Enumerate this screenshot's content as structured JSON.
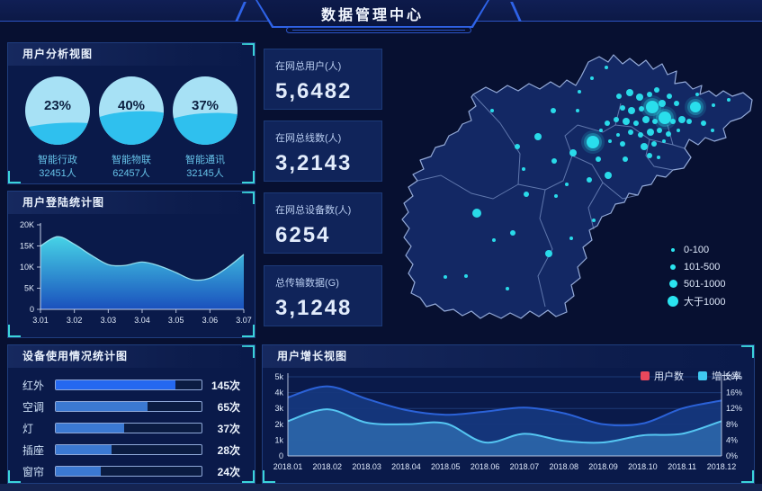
{
  "header": {
    "title": "数据管理中心"
  },
  "panels": {
    "user_analysis": {
      "title": "用户分析视图"
    },
    "login": {
      "title": "用户登陆统计图"
    },
    "device": {
      "title": "设备使用情况统计图"
    },
    "growth": {
      "title": "用户增长视图"
    }
  },
  "gauges": [
    {
      "percent": "23%",
      "pct": 23,
      "label": "智能行政",
      "count": "32451人"
    },
    {
      "percent": "40%",
      "pct": 40,
      "label": "智能物联",
      "count": "62457人"
    },
    {
      "percent": "37%",
      "pct": 37,
      "label": "智能通讯",
      "count": "32145人"
    }
  ],
  "kpis": [
    {
      "label": "在网总用户(人)",
      "value": "5,6482"
    },
    {
      "label": "在网总线数(人)",
      "value": "3,2143"
    },
    {
      "label": "在网总设备数(人)",
      "value": "6254"
    },
    {
      "label": "总传输数据(G)",
      "value": "3,1248"
    }
  ],
  "map_legend": [
    {
      "label": "0-100",
      "size": 4
    },
    {
      "label": "101-500",
      "size": 6
    },
    {
      "label": "501-1000",
      "size": 9
    },
    {
      "label": "大于1000",
      "size": 12
    }
  ],
  "growth_legend": [
    {
      "label": "用户数",
      "color": "#e8485c"
    },
    {
      "label": "增长率",
      "color": "#3fc8f0"
    }
  ],
  "colors": {
    "accent_cyan": "#2ae4f0",
    "bracket": "#3bd4da",
    "bar_primary": "#2468f0",
    "bar_secondary": "#3b79d2",
    "users_line": "#2b62d8",
    "users_fill": "#16377e",
    "growth_line": "#55c6f2",
    "growth_fill": "#2a64a8",
    "login_area_top": "#46d3e6",
    "login_area_bottom": "#1a50bd"
  },
  "chart_data": [
    {
      "id": "login",
      "type": "area",
      "title": "用户登陆统计图",
      "xticks": [
        "3.01",
        "3.02",
        "3.03",
        "3.04",
        "3.05",
        "3.06",
        "3.07"
      ],
      "yticks": [
        "0",
        "5K",
        "10K",
        "15K",
        "20K"
      ],
      "ylim": [
        0,
        20000
      ],
      "points": [
        [
          0,
          15000
        ],
        [
          0.5,
          17200
        ],
        [
          1,
          15400
        ],
        [
          1.5,
          12800
        ],
        [
          2,
          10600
        ],
        [
          2.5,
          10400
        ],
        [
          3,
          11200
        ],
        [
          3.5,
          10300
        ],
        [
          4,
          8700
        ],
        [
          4.5,
          7000
        ],
        [
          5,
          7400
        ],
        [
          5.5,
          9800
        ],
        [
          6,
          13000
        ]
      ]
    },
    {
      "id": "device",
      "type": "bar",
      "title": "设备使用情况统计图",
      "categories": [
        "红外",
        "空调",
        "灯",
        "插座",
        "窗帘"
      ],
      "values": [
        145,
        65,
        37,
        28,
        24
      ],
      "unit": "次",
      "labels": [
        "145次",
        "65次",
        "37次",
        "28次",
        "24次"
      ],
      "bar_pcts": [
        82,
        63,
        47,
        38,
        31
      ]
    },
    {
      "id": "growth",
      "type": "area",
      "title": "用户增长视图",
      "categories": [
        "2018.01",
        "2018.02",
        "2018.03",
        "2018.04",
        "2018.05",
        "2018.06",
        "2018.07",
        "2018.08",
        "2018.09",
        "2018.10",
        "2018.11",
        "2018.12"
      ],
      "series": [
        {
          "name": "用户数",
          "axis": "left",
          "values": [
            3700,
            4400,
            3600,
            2900,
            2600,
            2800,
            3050,
            2700,
            2000,
            2050,
            3000,
            3500
          ]
        },
        {
          "name": "增长率",
          "axis": "right",
          "values": [
            8.8,
            11.8,
            8.4,
            8.0,
            8.2,
            3.4,
            5.6,
            3.8,
            3.4,
            5.2,
            5.6,
            8.8
          ]
        }
      ],
      "ylim_left": [
        0,
        5000
      ],
      "ylim_right": [
        0,
        20
      ],
      "yticks_left": [
        "0",
        "1k",
        "2k",
        "3k",
        "4k",
        "5k"
      ],
      "yticks_right": [
        "0%",
        "4%",
        "8%",
        "12%",
        "16%",
        "20%"
      ],
      "legend": [
        "用户数",
        "增长率"
      ],
      "legend_position": "top-right"
    },
    {
      "id": "map",
      "type": "scatter",
      "legend": [
        "0-100",
        "101-500",
        "501-1000",
        "大于1000"
      ],
      "dots": [
        [
          258,
          62,
          3
        ],
        [
          270,
          58,
          4
        ],
        [
          281,
          63,
          4
        ],
        [
          292,
          60,
          3
        ],
        [
          300,
          55,
          3
        ],
        [
          314,
          62,
          3
        ],
        [
          322,
          70,
          3
        ],
        [
          306,
          70,
          4
        ],
        [
          295,
          74,
          7
        ],
        [
          272,
          78,
          4
        ],
        [
          262,
          75,
          3
        ],
        [
          283,
          76,
          3
        ],
        [
          255,
          88,
          3
        ],
        [
          266,
          90,
          4
        ],
        [
          277,
          92,
          3
        ],
        [
          288,
          88,
          4
        ],
        [
          298,
          90,
          3
        ],
        [
          309,
          86,
          7
        ],
        [
          318,
          90,
          3
        ],
        [
          328,
          88,
          4
        ],
        [
          336,
          90,
          3
        ],
        [
          343,
          74,
          6
        ],
        [
          352,
          92,
          3
        ],
        [
          362,
          100,
          2
        ],
        [
          271,
          102,
          3
        ],
        [
          282,
          105,
          3
        ],
        [
          293,
          102,
          4
        ],
        [
          303,
          100,
          3
        ],
        [
          313,
          104,
          3
        ],
        [
          324,
          100,
          2
        ],
        [
          257,
          105,
          2
        ],
        [
          248,
          112,
          2
        ],
        [
          262,
          115,
          3
        ],
        [
          286,
          118,
          4
        ],
        [
          297,
          115,
          3
        ],
        [
          308,
          112,
          2
        ],
        [
          292,
          128,
          3
        ],
        [
          302,
          130,
          2
        ],
        [
          229,
          113,
          7
        ],
        [
          207,
          125,
          4
        ],
        [
          168,
          107,
          4
        ],
        [
          145,
          118,
          3
        ],
        [
          186,
          134,
          3
        ],
        [
          235,
          132,
          3
        ],
        [
          246,
          150,
          4
        ],
        [
          265,
          132,
          3
        ],
        [
          225,
          155,
          3
        ],
        [
          200,
          160,
          2
        ],
        [
          152,
          143,
          2
        ],
        [
          100,
          192,
          5
        ],
        [
          155,
          171,
          3
        ],
        [
          188,
          173,
          2
        ],
        [
          140,
          214,
          3
        ],
        [
          119,
          222,
          2
        ],
        [
          180,
          237,
          4
        ],
        [
          88,
          262,
          2
        ],
        [
          134,
          276,
          2
        ],
        [
          65,
          263,
          2
        ],
        [
          205,
          220,
          2
        ],
        [
          230,
          200,
          2
        ],
        [
          117,
          78,
          2
        ],
        [
          185,
          78,
          3
        ],
        [
          212,
          78,
          2
        ],
        [
          228,
          42,
          2
        ],
        [
          244,
          30,
          2
        ],
        [
          214,
          57,
          2
        ],
        [
          345,
          60,
          2
        ],
        [
          363,
          72,
          2
        ],
        [
          380,
          66,
          2
        ],
        [
          238,
          100,
          2
        ],
        [
          245,
          92,
          3
        ]
      ]
    }
  ]
}
